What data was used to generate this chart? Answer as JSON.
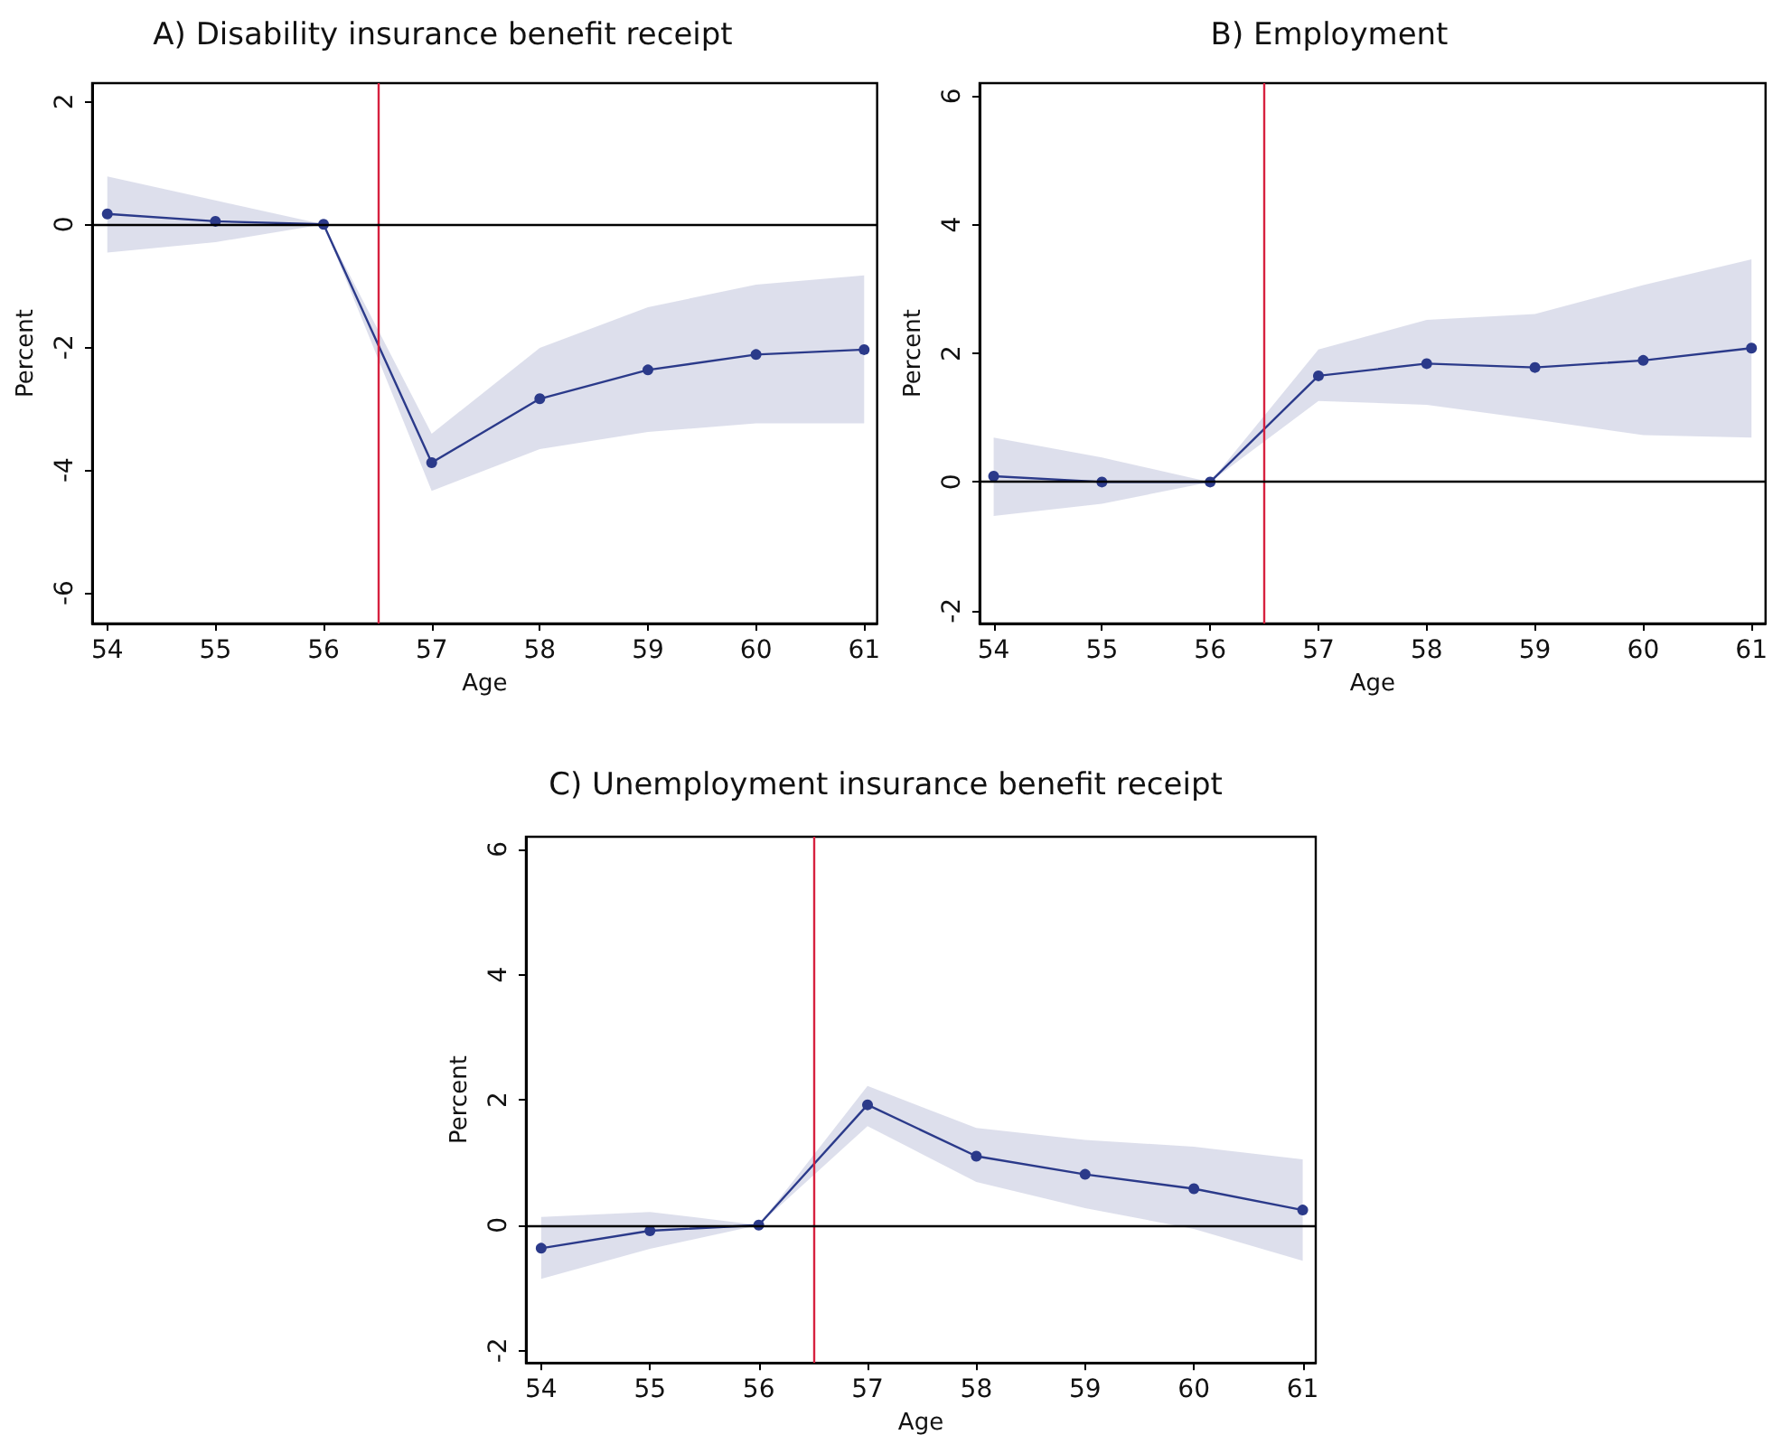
{
  "chart_data": [
    {
      "type": "line",
      "title": "A) Disability insurance benefit receipt",
      "xlabel": "Age",
      "ylabel": "Percent",
      "x": [
        54,
        55,
        56,
        57,
        58,
        59,
        60,
        61
      ],
      "xlim": [
        53.86,
        61.12
      ],
      "xticks": [
        54,
        55,
        56,
        57,
        58,
        59,
        60,
        61
      ],
      "ylim": [
        -6.5,
        2.3
      ],
      "yticks": [
        -6,
        -4,
        -2,
        0,
        2
      ],
      "grid": false,
      "marker": "circle",
      "line_style": "solid",
      "series": [
        {
          "color": "#2b3a8a",
          "values": [
            0.17,
            0.05,
            0,
            -3.88,
            -2.84,
            -2.37,
            -2.12,
            -2.04
          ],
          "lower": [
            -0.46,
            -0.29,
            0,
            -4.34,
            -3.66,
            -3.38,
            -3.24,
            -3.24
          ],
          "upper": [
            0.78,
            0.39,
            0,
            -3.41,
            -2.01,
            -1.35,
            -0.98,
            -0.83
          ]
        }
      ],
      "ref_lines": [
        {
          "axis": "x",
          "value": 56.5,
          "color": "#d6213f"
        },
        {
          "axis": "y",
          "value": 0,
          "color": "#000000"
        }
      ]
    },
    {
      "type": "line",
      "title": "B) Employment",
      "xlabel": "Age",
      "ylabel": "Percent",
      "x": [
        54,
        55,
        56,
        57,
        58,
        59,
        60,
        61
      ],
      "xlim": [
        53.87,
        61.13
      ],
      "xticks": [
        54,
        55,
        56,
        57,
        58,
        59,
        60,
        61
      ],
      "ylim": [
        -2.2,
        6.2
      ],
      "yticks": [
        -2,
        0,
        2,
        4,
        6
      ],
      "grid": false,
      "marker": "circle",
      "line_style": "solid",
      "series": [
        {
          "color": "#2b3a8a",
          "values": [
            0.09,
            0,
            0,
            1.65,
            1.84,
            1.78,
            1.89,
            2.08
          ],
          "lower": [
            -0.53,
            -0.34,
            0,
            1.26,
            1.2,
            0.97,
            0.73,
            0.69
          ],
          "upper": [
            0.69,
            0.38,
            0,
            2.06,
            2.52,
            2.61,
            3.06,
            3.46
          ]
        }
      ],
      "ref_lines": [
        {
          "axis": "x",
          "value": 56.5,
          "color": "#d6213f"
        },
        {
          "axis": "y",
          "value": 0,
          "color": "#000000"
        }
      ]
    },
    {
      "type": "line",
      "title": "C) Unemployment insurance benefit receipt",
      "xlabel": "Age",
      "ylabel": "Percent",
      "x": [
        54,
        55,
        56,
        57,
        58,
        59,
        60,
        61
      ],
      "xlim": [
        53.86,
        61.12
      ],
      "xticks": [
        54,
        55,
        56,
        57,
        58,
        59,
        60,
        61
      ],
      "ylim": [
        -2.2,
        6.2
      ],
      "yticks": [
        -2,
        0,
        2,
        4,
        6
      ],
      "grid": false,
      "marker": "circle",
      "line_style": "solid",
      "series": [
        {
          "color": "#2b3a8a",
          "values": [
            -0.37,
            -0.09,
            0,
            1.92,
            1.1,
            0.81,
            0.58,
            0.24
          ],
          "lower": [
            -0.86,
            -0.38,
            0,
            1.58,
            0.69,
            0.27,
            -0.06,
            -0.57
          ],
          "upper": [
            0.13,
            0.21,
            0,
            2.22,
            1.55,
            1.36,
            1.25,
            1.05
          ]
        }
      ],
      "ref_lines": [
        {
          "axis": "x",
          "value": 56.5,
          "color": "#d6213f"
        },
        {
          "axis": "y",
          "value": 0,
          "color": "#000000"
        }
      ]
    }
  ]
}
